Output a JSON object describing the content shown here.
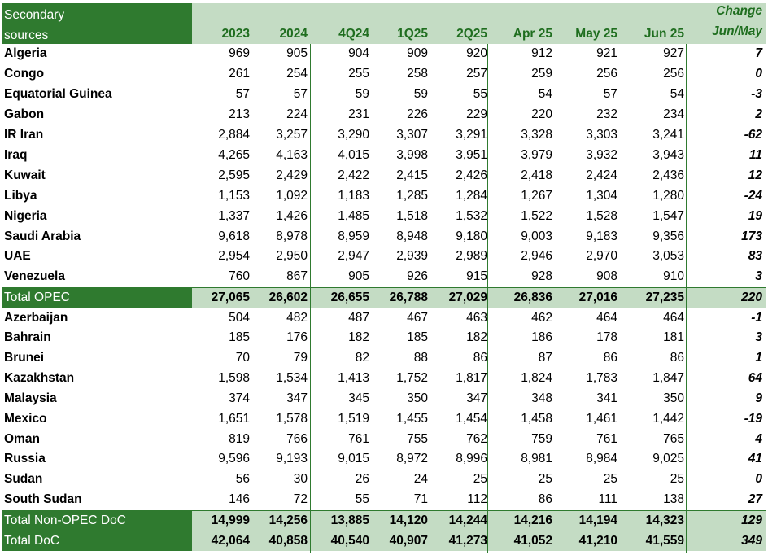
{
  "header": {
    "label_line1": "Secondary",
    "label_line2": "sources",
    "columns": [
      "2023",
      "2024",
      "4Q24",
      "1Q25",
      "2Q25",
      "Apr 25",
      "May 25",
      "Jun 25"
    ],
    "change_line1": "Change",
    "change_line2": "Jun/May"
  },
  "rows": [
    {
      "name": "Algeria",
      "values": [
        "969",
        "905",
        "904",
        "909",
        "920",
        "912",
        "921",
        "927"
      ],
      "change": "7"
    },
    {
      "name": "Congo",
      "values": [
        "261",
        "254",
        "255",
        "258",
        "257",
        "259",
        "256",
        "256"
      ],
      "change": "0"
    },
    {
      "name": "Equatorial Guinea",
      "values": [
        "57",
        "57",
        "59",
        "59",
        "55",
        "54",
        "57",
        "54"
      ],
      "change": "-3"
    },
    {
      "name": "Gabon",
      "values": [
        "213",
        "224",
        "231",
        "226",
        "229",
        "220",
        "232",
        "234"
      ],
      "change": "2"
    },
    {
      "name": "IR Iran",
      "values": [
        "2,884",
        "3,257",
        "3,290",
        "3,307",
        "3,291",
        "3,328",
        "3,303",
        "3,241"
      ],
      "change": "-62"
    },
    {
      "name": "Iraq",
      "values": [
        "4,265",
        "4,163",
        "4,015",
        "3,998",
        "3,951",
        "3,979",
        "3,932",
        "3,943"
      ],
      "change": "11"
    },
    {
      "name": "Kuwait",
      "values": [
        "2,595",
        "2,429",
        "2,422",
        "2,415",
        "2,426",
        "2,418",
        "2,424",
        "2,436"
      ],
      "change": "12"
    },
    {
      "name": "Libya",
      "values": [
        "1,153",
        "1,092",
        "1,183",
        "1,285",
        "1,284",
        "1,267",
        "1,304",
        "1,280"
      ],
      "change": "-24"
    },
    {
      "name": "Nigeria",
      "values": [
        "1,337",
        "1,426",
        "1,485",
        "1,518",
        "1,532",
        "1,522",
        "1,528",
        "1,547"
      ],
      "change": "19"
    },
    {
      "name": "Saudi Arabia",
      "values": [
        "9,618",
        "8,978",
        "8,959",
        "8,948",
        "9,180",
        "9,003",
        "9,183",
        "9,356"
      ],
      "change": "173"
    },
    {
      "name": "UAE",
      "values": [
        "2,954",
        "2,950",
        "2,947",
        "2,939",
        "2,989",
        "2,946",
        "2,970",
        "3,053"
      ],
      "change": "83"
    },
    {
      "name": "Venezuela",
      "values": [
        "760",
        "867",
        "905",
        "926",
        "915",
        "928",
        "908",
        "910"
      ],
      "change": "3"
    },
    {
      "name": "Total  OPEC",
      "values": [
        "27,065",
        "26,602",
        "26,655",
        "26,788",
        "27,029",
        "26,836",
        "27,016",
        "27,235"
      ],
      "change": "220",
      "total": true
    },
    {
      "name": "Azerbaijan",
      "values": [
        "504",
        "482",
        "487",
        "467",
        "463",
        "462",
        "464",
        "464"
      ],
      "change": "-1"
    },
    {
      "name": "Bahrain",
      "values": [
        "185",
        "176",
        "182",
        "185",
        "182",
        "186",
        "178",
        "181"
      ],
      "change": "3"
    },
    {
      "name": "Brunei",
      "values": [
        "70",
        "79",
        "82",
        "88",
        "86",
        "87",
        "86",
        "86"
      ],
      "change": "1"
    },
    {
      "name": "Kazakhstan",
      "values": [
        "1,598",
        "1,534",
        "1,413",
        "1,752",
        "1,817",
        "1,824",
        "1,783",
        "1,847"
      ],
      "change": "64"
    },
    {
      "name": "Malaysia",
      "values": [
        "374",
        "347",
        "345",
        "350",
        "347",
        "348",
        "341",
        "350"
      ],
      "change": "9"
    },
    {
      "name": "Mexico",
      "values": [
        "1,651",
        "1,578",
        "1,519",
        "1,455",
        "1,454",
        "1,458",
        "1,461",
        "1,442"
      ],
      "change": "-19"
    },
    {
      "name": "Oman",
      "values": [
        "819",
        "766",
        "761",
        "755",
        "762",
        "759",
        "761",
        "765"
      ],
      "change": "4"
    },
    {
      "name": "Russia",
      "values": [
        "9,596",
        "9,193",
        "9,015",
        "8,972",
        "8,996",
        "8,981",
        "8,984",
        "9,025"
      ],
      "change": "41"
    },
    {
      "name": "Sudan",
      "values": [
        "56",
        "30",
        "26",
        "24",
        "25",
        "25",
        "25",
        "25"
      ],
      "change": "0"
    },
    {
      "name": "South Sudan",
      "values": [
        "146",
        "72",
        "55",
        "71",
        "112",
        "86",
        "111",
        "138"
      ],
      "change": "27"
    },
    {
      "name": "Total Non-OPEC DoC",
      "values": [
        "14,999",
        "14,256",
        "13,885",
        "14,120",
        "14,244",
        "14,216",
        "14,194",
        "14,323"
      ],
      "change": "129",
      "total": true
    },
    {
      "name": "Total DoC",
      "values": [
        "42,064",
        "40,858",
        "40,540",
        "40,907",
        "41,273",
        "41,052",
        "41,210",
        "41,559"
      ],
      "change": "349",
      "total": true
    }
  ]
}
